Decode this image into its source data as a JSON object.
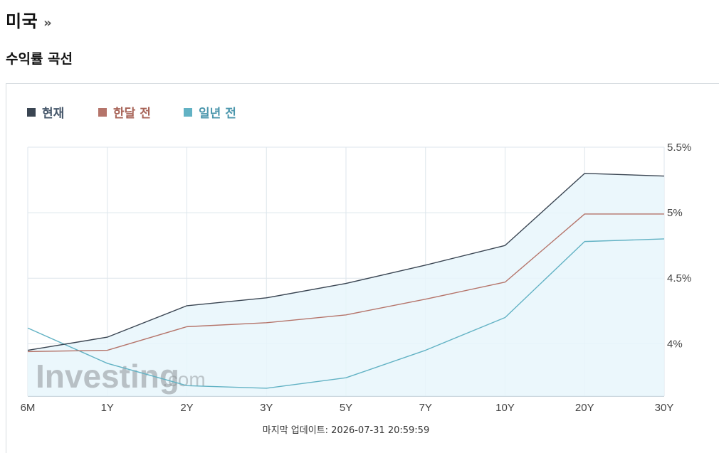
{
  "header": {
    "title": "미국",
    "chevron": "»",
    "section_title": "수익률 곡선"
  },
  "footer": {
    "last_update": "마지막 업데이트: 2026-07-31 20:59:59"
  },
  "watermark": {
    "brand": "Investing",
    "suffix": ".com"
  },
  "colors": {
    "current": "#3a4552",
    "month_ago": "#b5746a",
    "year_ago": "#62b2c4",
    "area_fill": "#e8f6fc",
    "grid": "#dde6ec",
    "axis": "#b9c8d2"
  },
  "chart_data": {
    "type": "line",
    "categories": [
      "6M",
      "1Y",
      "2Y",
      "3Y",
      "5Y",
      "7Y",
      "10Y",
      "20Y",
      "30Y"
    ],
    "series": [
      {
        "name": "현재",
        "color": "#3a4552",
        "values": [
          3.95,
          4.05,
          4.29,
          4.35,
          4.46,
          4.6,
          4.75,
          5.3,
          5.28
        ]
      },
      {
        "name": "한달 전",
        "color": "#b5746a",
        "values": [
          3.94,
          3.95,
          4.13,
          4.16,
          4.22,
          4.34,
          4.47,
          4.99,
          4.99
        ]
      },
      {
        "name": "일년 전",
        "color": "#62b2c4",
        "values": [
          4.12,
          3.85,
          3.68,
          3.66,
          3.74,
          3.95,
          4.2,
          4.78,
          4.8
        ]
      }
    ],
    "y_ticks": [
      "5.5%",
      "5%",
      "4.5%",
      "4%"
    ],
    "y_tick_values": [
      5.5,
      5.0,
      4.5,
      4.0
    ],
    "ylim": [
      3.6,
      5.5
    ],
    "y_axis_side": "right",
    "grid": true,
    "legend_position": "top-left",
    "area_fill_under": "현재"
  }
}
